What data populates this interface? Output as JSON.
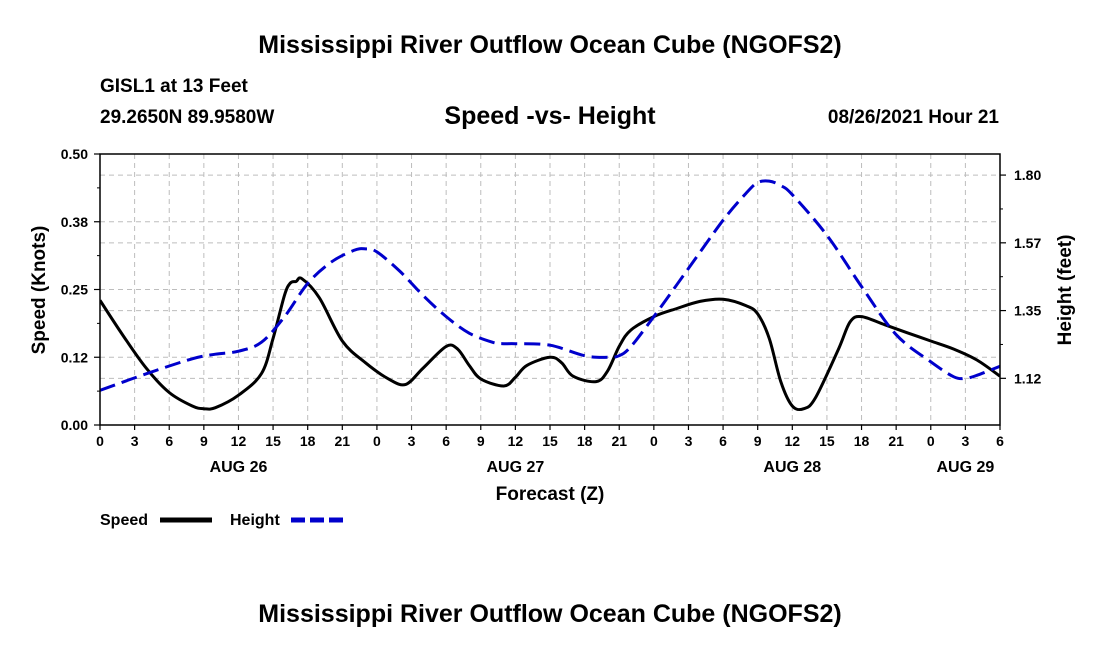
{
  "header": {
    "title": "Mississippi River Outflow Ocean Cube (NGOFS2)",
    "station": "GISL1 at 13 Feet",
    "coords": "29.2650N  89.9580W",
    "chart_title": "Speed -vs- Height",
    "datetime": "08/26/2021 Hour 21"
  },
  "footer": {
    "title": "Mississippi River Outflow Ocean Cube (NGOFS2)"
  },
  "chart_data": {
    "type": "line",
    "title": "Speed -vs- Height",
    "xlabel": "Forecast (Z)",
    "ylabel": "Speed (Knots)",
    "y2label": "Height (feet)",
    "xlim": [
      0,
      78
    ],
    "ylim": [
      0,
      0.5
    ],
    "y2lim": [
      0.97,
      1.87
    ],
    "grid": true,
    "x_ticks": [
      0,
      3,
      6,
      9,
      12,
      15,
      18,
      21,
      24,
      27,
      30,
      33,
      36,
      39,
      42,
      45,
      48,
      51,
      54,
      57,
      60,
      63,
      66,
      69,
      72,
      75,
      78
    ],
    "x_tick_labels": [
      "0",
      "3",
      "6",
      "9",
      "12",
      "15",
      "18",
      "21",
      "0",
      "3",
      "6",
      "9",
      "12",
      "15",
      "18",
      "21",
      "0",
      "3",
      "6",
      "9",
      "12",
      "15",
      "18",
      "21",
      "0",
      "3",
      "6"
    ],
    "date_labels": [
      {
        "hour": 12,
        "label": "AUG 26"
      },
      {
        "hour": 36,
        "label": "AUG 27"
      },
      {
        "hour": 60,
        "label": "AUG 28"
      },
      {
        "hour": 75,
        "label": "AUG 29"
      }
    ],
    "y_ticks": [
      0,
      0.125,
      0.25,
      0.375,
      0.5
    ],
    "y_tick_labels": [
      "0.00",
      "0.12",
      "0.25",
      "0.38",
      "0.50"
    ],
    "y2_ticks": [
      1.125,
      1.35,
      1.575,
      1.8
    ],
    "y2_tick_labels": [
      "1.12",
      "1.35",
      "1.57",
      "1.80"
    ],
    "legend": [
      {
        "label": "Speed",
        "color": "#000000",
        "dash": "solid"
      },
      {
        "label": "Height",
        "color": "#0000cc",
        "dash": "dashed"
      }
    ],
    "series": [
      {
        "name": "Speed",
        "axis": "left",
        "color": "#000000",
        "x": [
          0,
          2,
          4,
          6,
          8,
          9,
          10,
          12,
          14,
          15,
          16,
          16.5,
          17,
          17.5,
          19,
          21,
          23,
          25,
          26.5,
          28,
          30,
          31,
          32,
          33,
          35,
          36,
          37,
          39,
          40,
          41,
          43,
          44,
          45,
          46,
          48,
          50,
          52,
          54,
          56,
          57,
          58,
          59,
          60,
          61,
          62,
          64,
          65,
          66,
          68,
          70,
          72,
          74,
          76,
          78
        ],
        "y": [
          0.23,
          0.165,
          0.105,
          0.06,
          0.035,
          0.03,
          0.032,
          0.055,
          0.095,
          0.16,
          0.24,
          0.262,
          0.265,
          0.27,
          0.235,
          0.155,
          0.115,
          0.085,
          0.075,
          0.105,
          0.145,
          0.14,
          0.11,
          0.085,
          0.072,
          0.088,
          0.11,
          0.125,
          0.115,
          0.09,
          0.08,
          0.1,
          0.145,
          0.175,
          0.2,
          0.215,
          0.228,
          0.232,
          0.22,
          0.205,
          0.16,
          0.08,
          0.035,
          0.03,
          0.05,
          0.14,
          0.19,
          0.2,
          0.185,
          0.17,
          0.155,
          0.14,
          0.12,
          0.09
        ]
      },
      {
        "name": "Height",
        "axis": "right",
        "color": "#0000cc",
        "x": [
          0,
          4,
          8,
          10,
          12,
          14,
          16,
          18,
          20,
          22,
          23,
          24,
          26,
          28,
          30,
          32,
          34,
          35,
          36,
          39,
          42,
          44,
          45,
          46,
          48,
          51,
          54,
          56,
          57,
          58,
          59,
          60,
          63,
          66,
          69,
          72,
          74,
          75,
          76,
          78
        ],
        "y": [
          1.085,
          1.14,
          1.19,
          1.205,
          1.215,
          1.245,
          1.33,
          1.44,
          1.51,
          1.55,
          1.555,
          1.545,
          1.48,
          1.4,
          1.33,
          1.275,
          1.245,
          1.24,
          1.24,
          1.235,
          1.2,
          1.195,
          1.2,
          1.23,
          1.33,
          1.49,
          1.65,
          1.74,
          1.775,
          1.78,
          1.765,
          1.735,
          1.6,
          1.43,
          1.27,
          1.18,
          1.13,
          1.125,
          1.135,
          1.165
        ]
      }
    ]
  }
}
